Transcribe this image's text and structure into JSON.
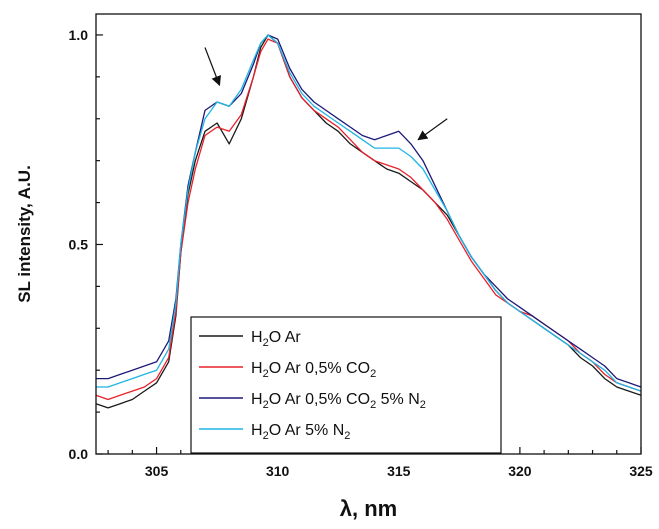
{
  "chart_data": {
    "type": "line",
    "title": "",
    "xlabel": "λ, nm",
    "ylabel": "SL intensity, A.U.",
    "xlim": [
      302.5,
      325
    ],
    "ylim": [
      0,
      1.05
    ],
    "x_ticks": [
      305,
      310,
      315,
      320,
      325
    ],
    "y_ticks": [
      0.0,
      0.5,
      1.0
    ],
    "x_tick_labels": [
      "305",
      "310",
      "315",
      "320",
      "325"
    ],
    "y_tick_labels": [
      "0.0",
      "0.5",
      "1.0"
    ],
    "grid": false,
    "legend_position": "bottom-left",
    "series": [
      {
        "name": "H2O Ar",
        "label_parts": [
          [
            "H"
          ],
          [
            "2",
            "sub"
          ],
          [
            "O Ar"
          ]
        ],
        "color": "#1a1a1a",
        "x": [
          302.5,
          303,
          303.5,
          304,
          304.5,
          305,
          305.5,
          305.8,
          306,
          306.3,
          306.6,
          307,
          307.5,
          308,
          308.5,
          309,
          309.3,
          309.6,
          310,
          310.5,
          311,
          311.5,
          312,
          312.5,
          313,
          313.5,
          314,
          314.5,
          315,
          315.5,
          316,
          316.5,
          317,
          317.5,
          318,
          318.5,
          319,
          319.5,
          320,
          320.5,
          321,
          321.5,
          322,
          322.5,
          323,
          323.5,
          324,
          324.5,
          325
        ],
        "y": [
          0.12,
          0.11,
          0.12,
          0.13,
          0.15,
          0.17,
          0.22,
          0.33,
          0.48,
          0.62,
          0.7,
          0.77,
          0.79,
          0.74,
          0.8,
          0.9,
          0.97,
          1.0,
          0.98,
          0.9,
          0.85,
          0.82,
          0.79,
          0.77,
          0.74,
          0.72,
          0.7,
          0.68,
          0.67,
          0.65,
          0.63,
          0.6,
          0.57,
          0.52,
          0.47,
          0.43,
          0.39,
          0.36,
          0.34,
          0.32,
          0.3,
          0.28,
          0.26,
          0.23,
          0.21,
          0.18,
          0.16,
          0.15,
          0.14
        ]
      },
      {
        "name": "H2O Ar 0,5% CO2",
        "label_parts": [
          [
            "H"
          ],
          [
            "2",
            "sub"
          ],
          [
            "O Ar 0,5% CO"
          ],
          [
            "2",
            "sub"
          ]
        ],
        "color": "#e8202a",
        "x": [
          302.5,
          303,
          303.5,
          304,
          304.5,
          305,
          305.5,
          305.8,
          306,
          306.3,
          306.6,
          307,
          307.5,
          308,
          308.5,
          309,
          309.3,
          309.6,
          310,
          310.5,
          311,
          311.5,
          312,
          312.5,
          313,
          313.5,
          314,
          314.5,
          315,
          315.5,
          316,
          316.5,
          317,
          317.5,
          318,
          318.5,
          319,
          319.5,
          320,
          320.5,
          321,
          321.5,
          322,
          322.5,
          323,
          323.5,
          324,
          324.5,
          325
        ],
        "y": [
          0.14,
          0.13,
          0.14,
          0.15,
          0.16,
          0.18,
          0.23,
          0.34,
          0.48,
          0.6,
          0.68,
          0.76,
          0.78,
          0.77,
          0.81,
          0.9,
          0.96,
          0.99,
          0.98,
          0.9,
          0.85,
          0.82,
          0.8,
          0.78,
          0.75,
          0.72,
          0.7,
          0.69,
          0.68,
          0.66,
          0.63,
          0.6,
          0.56,
          0.51,
          0.46,
          0.42,
          0.38,
          0.36,
          0.34,
          0.33,
          0.31,
          0.29,
          0.27,
          0.24,
          0.22,
          0.19,
          0.17,
          0.16,
          0.15
        ]
      },
      {
        "name": "H2O Ar 0,5% CO2 5% N2",
        "label_parts": [
          [
            "H"
          ],
          [
            "2",
            "sub"
          ],
          [
            "O Ar 0,5% CO"
          ],
          [
            "2",
            "sub"
          ],
          [
            " 5% N"
          ],
          [
            "2",
            "sub"
          ]
        ],
        "color": "#1c1a78",
        "x": [
          302.5,
          303,
          303.5,
          304,
          304.5,
          305,
          305.5,
          305.8,
          306,
          306.3,
          306.6,
          307,
          307.5,
          308,
          308.5,
          309,
          309.3,
          309.6,
          310,
          310.5,
          311,
          311.5,
          312,
          312.5,
          313,
          313.5,
          314,
          314.5,
          315,
          315.5,
          316,
          316.5,
          317,
          317.5,
          318,
          318.5,
          319,
          319.5,
          320,
          320.5,
          321,
          321.5,
          322,
          322.5,
          323,
          323.5,
          324,
          324.5,
          325
        ],
        "y": [
          0.18,
          0.18,
          0.19,
          0.2,
          0.21,
          0.22,
          0.27,
          0.37,
          0.5,
          0.64,
          0.72,
          0.82,
          0.84,
          0.83,
          0.86,
          0.93,
          0.98,
          1.0,
          0.99,
          0.92,
          0.87,
          0.84,
          0.82,
          0.8,
          0.78,
          0.76,
          0.75,
          0.76,
          0.77,
          0.74,
          0.7,
          0.64,
          0.58,
          0.52,
          0.47,
          0.43,
          0.4,
          0.37,
          0.35,
          0.33,
          0.31,
          0.29,
          0.27,
          0.25,
          0.23,
          0.21,
          0.18,
          0.17,
          0.16
        ]
      },
      {
        "name": "H2O Ar 5% N2",
        "label_parts": [
          [
            "H"
          ],
          [
            "2",
            "sub"
          ],
          [
            "O Ar 5% N"
          ],
          [
            "2",
            "sub"
          ]
        ],
        "color": "#1fb5e5",
        "x": [
          302.5,
          303,
          303.5,
          304,
          304.5,
          305,
          305.5,
          305.8,
          306,
          306.3,
          306.6,
          307,
          307.5,
          308,
          308.5,
          309,
          309.3,
          309.6,
          310,
          310.5,
          311,
          311.5,
          312,
          312.5,
          313,
          313.5,
          314,
          314.5,
          315,
          315.5,
          316,
          316.5,
          317,
          317.5,
          318,
          318.5,
          319,
          319.5,
          320,
          320.5,
          321,
          321.5,
          322,
          322.5,
          323,
          323.5,
          324,
          324.5,
          325
        ],
        "y": [
          0.16,
          0.16,
          0.17,
          0.18,
          0.19,
          0.2,
          0.25,
          0.36,
          0.5,
          0.63,
          0.72,
          0.8,
          0.84,
          0.83,
          0.87,
          0.94,
          0.98,
          1.0,
          0.98,
          0.91,
          0.86,
          0.83,
          0.81,
          0.79,
          0.77,
          0.75,
          0.73,
          0.73,
          0.73,
          0.71,
          0.68,
          0.63,
          0.58,
          0.52,
          0.47,
          0.43,
          0.39,
          0.36,
          0.34,
          0.32,
          0.3,
          0.28,
          0.26,
          0.24,
          0.22,
          0.2,
          0.17,
          0.16,
          0.15
        ]
      }
    ],
    "annotations": [
      {
        "type": "arrow",
        "from": [
          307.0,
          0.97
        ],
        "to": [
          307.6,
          0.88
        ],
        "color": "#111111"
      },
      {
        "type": "arrow",
        "from": [
          317.0,
          0.8
        ],
        "to": [
          315.8,
          0.75
        ],
        "color": "#111111"
      }
    ]
  }
}
